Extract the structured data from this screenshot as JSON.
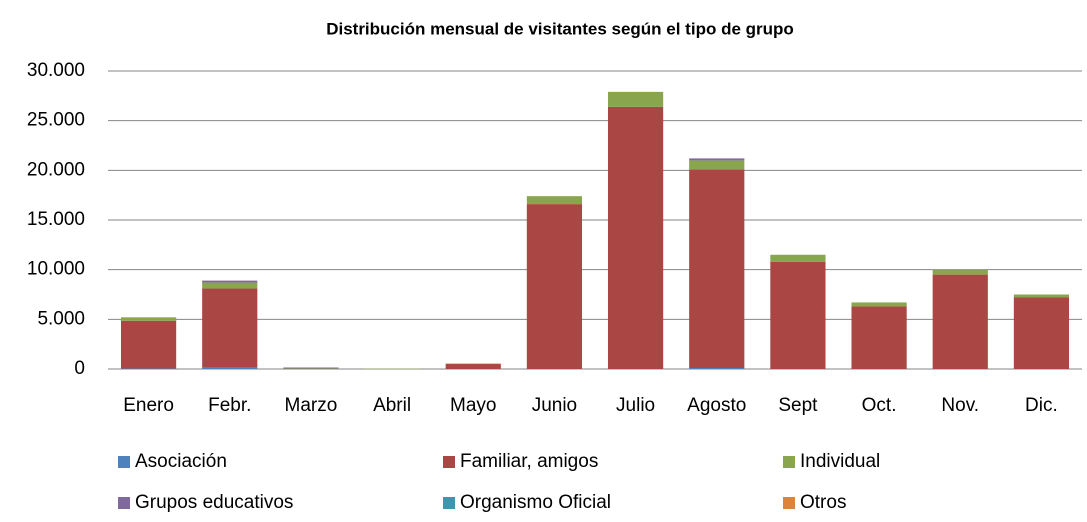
{
  "chart_data": {
    "type": "stacked_bar",
    "title": "Distribución mensual de visitantes según el tipo de grupo",
    "categories": [
      "Enero",
      "Febr.",
      "Marzo",
      "Abril",
      "Mayo",
      "Junio",
      "Julio",
      "Agosto",
      "Sept",
      "Oct.",
      "Nov.",
      "Dic."
    ],
    "series": [
      {
        "name": "Asociación",
        "color": "#4f81bd",
        "values": [
          50,
          200,
          0,
          0,
          0,
          0,
          0,
          100,
          0,
          0,
          0,
          0
        ]
      },
      {
        "name": "Familiar, amigos",
        "color": "#aa4643",
        "values": [
          4800,
          7900,
          0,
          0,
          500,
          16600,
          26400,
          20000,
          10800,
          6300,
          9500,
          7200
        ]
      },
      {
        "name": "Individual",
        "color": "#89a54e",
        "values": [
          300,
          600,
          50,
          50,
          50,
          800,
          1500,
          900,
          700,
          400,
          500,
          300
        ]
      },
      {
        "name": "Grupos educativos",
        "color": "#80699b",
        "values": [
          50,
          200,
          100,
          0,
          0,
          0,
          0,
          200,
          0,
          0,
          0,
          0
        ]
      },
      {
        "name": "Organismo Oficial",
        "color": "#3d96ae",
        "values": [
          0,
          0,
          0,
          0,
          0,
          0,
          0,
          0,
          0,
          0,
          0,
          0
        ]
      },
      {
        "name": "Otros",
        "color": "#db843d",
        "values": [
          0,
          0,
          0,
          0,
          0,
          0,
          0,
          0,
          0,
          0,
          0,
          0
        ]
      }
    ],
    "ylim": [
      0,
      30000
    ],
    "yticks": [
      0,
      {
        "value": 5000,
        "label": "5.000"
      },
      {
        "value": 10000,
        "label": "10.000"
      },
      {
        "value": 15000,
        "label": "15.000"
      },
      {
        "value": 20000,
        "label": "20.000"
      },
      {
        "value": 25000,
        "label": "25.000"
      },
      {
        "value": 30000,
        "label": "30.000"
      }
    ],
    "grid": true,
    "legend": "bottom"
  }
}
